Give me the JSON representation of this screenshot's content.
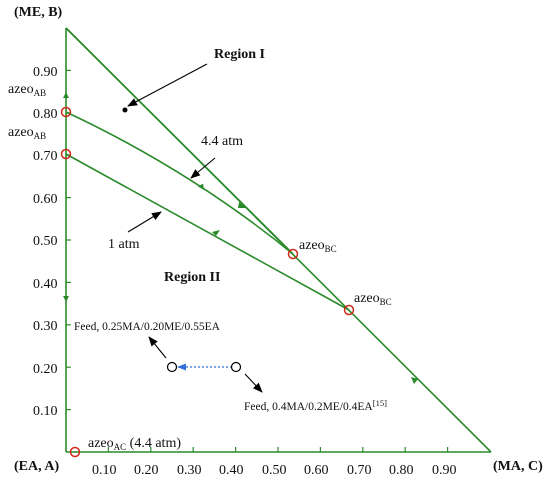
{
  "corners": {
    "top": "(ME, B)",
    "bottom_left": "(EA, A)",
    "bottom_right": "(MA, C)"
  },
  "axes": {
    "y_ticks": [
      "0.10",
      "0.20",
      "0.30",
      "0.40",
      "0.50",
      "0.60",
      "0.70",
      "0.80",
      "0.90"
    ],
    "x_ticks": [
      "0.10",
      "0.20",
      "0.30",
      "0.40",
      "0.50",
      "0.60",
      "0.70",
      "0.80",
      "0.90"
    ]
  },
  "labels": {
    "region1": "Region I",
    "region2": "Region II",
    "pressure_high": "4.4 atm",
    "pressure_low": "1 atm",
    "azeo": "azeo",
    "sub_ab": "AB",
    "sub_bc": "BC",
    "sub_ac": "AC",
    "azeo_ac_suffix": " (4.4 atm)",
    "feed1": "Feed, 0.25MA/0.20ME/0.55EA",
    "feed2": "Feed, 0.4MA/0.2ME/0.4EA",
    "feed2_ref": "[15]"
  },
  "chart_data": {
    "type": "ternary-residue-curve-map",
    "components": {
      "A": "EA",
      "B": "ME",
      "C": "MA"
    },
    "azeotropes": [
      {
        "name": "azeo AB",
        "pressure": "4.4 atm",
        "MA": 0.0,
        "ME": 0.8
      },
      {
        "name": "azeo AB",
        "pressure": "1 atm",
        "MA": 0.0,
        "ME": 0.7
      },
      {
        "name": "azeo BC",
        "pressure": "4.4 atm",
        "MA": 0.535,
        "ME": 0.465
      },
      {
        "name": "azeo BC",
        "pressure": "1 atm",
        "MA": 0.667,
        "ME": 0.333
      },
      {
        "name": "azeo AC",
        "pressure": "4.4 atm",
        "MA": 0.02,
        "ME": 0.0
      }
    ],
    "distillation_boundaries": [
      {
        "name": "4.4 atm",
        "from": {
          "MA": 0.0,
          "ME": 0.8
        },
        "to": {
          "MA": 0.535,
          "ME": 0.465
        }
      },
      {
        "name": "1 atm",
        "from": {
          "MA": 0.0,
          "ME": 0.7
        },
        "to": {
          "MA": 0.667,
          "ME": 0.333
        }
      }
    ],
    "feeds": [
      {
        "name": "Feed, 0.25MA/0.20ME/0.55EA",
        "MA": 0.25,
        "ME": 0.2,
        "EA": 0.55
      },
      {
        "name": "Feed, 0.4MA/0.2ME/0.4EA",
        "MA": 0.4,
        "ME": 0.2,
        "EA": 0.4
      }
    ],
    "region_marker": {
      "MA": 0.14,
      "ME": 0.8
    },
    "x_axis": "MA",
    "y_axis": "ME",
    "xlim": [
      0,
      1
    ],
    "ylim": [
      0,
      1
    ]
  }
}
